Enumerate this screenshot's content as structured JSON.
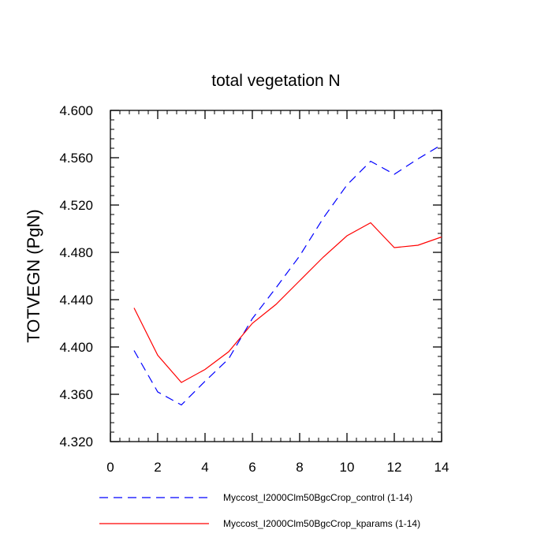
{
  "chart_data": {
    "type": "line",
    "title": "total vegetation N",
    "xlabel": "",
    "ylabel": "TOTVEGN  (PgN)",
    "xlim": [
      0,
      14
    ],
    "ylim": [
      4.32,
      4.6
    ],
    "xticks": [
      0,
      2,
      4,
      6,
      8,
      10,
      12,
      14
    ],
    "xtick_labels": [
      "0",
      "2",
      "4",
      "6",
      "8",
      "10",
      "12",
      "14"
    ],
    "yticks": [
      4.32,
      4.36,
      4.4,
      4.44,
      4.48,
      4.52,
      4.56,
      4.6
    ],
    "ytick_labels": [
      "4.320",
      "4.360",
      "4.400",
      "4.440",
      "4.480",
      "4.520",
      "4.560",
      "4.600"
    ],
    "grid": false,
    "legend_position": "bottom",
    "x": [
      1,
      2,
      3,
      4,
      5,
      6,
      7,
      8,
      9,
      10,
      11,
      12,
      13,
      14
    ],
    "series": [
      {
        "name": "Myccost_I2000Clm50BgcCrop_control (1-14)",
        "color": "#0000ff",
        "dash": "dashed",
        "values": [
          4.397,
          4.362,
          4.351,
          4.371,
          4.39,
          4.424,
          4.45,
          4.477,
          4.509,
          4.537,
          4.557,
          4.546,
          4.559,
          4.571
        ]
      },
      {
        "name": "Myccost_I2000Clm50BgcCrop_kparams (1-14)",
        "color": "#ff0000",
        "dash": "solid",
        "values": [
          4.433,
          4.393,
          4.37,
          4.381,
          4.396,
          4.42,
          4.436,
          4.456,
          4.476,
          4.494,
          4.505,
          4.484,
          4.486,
          4.493
        ]
      }
    ]
  }
}
